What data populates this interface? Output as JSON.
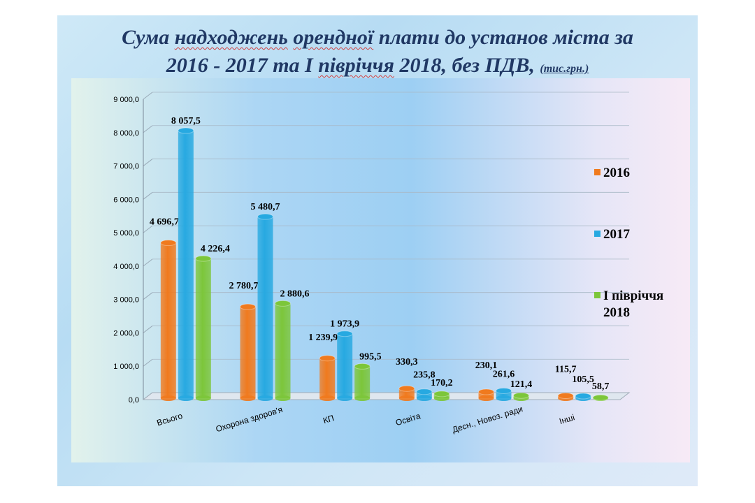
{
  "title": {
    "line1_prefix": "Сума ",
    "line1_squig1": "надходжень",
    "line1_mid": " ",
    "line1_squig2": "орендної",
    "line1_suffix": " плати до установ міста  за",
    "line2_prefix": "2016  - 2017 та І ",
    "line2_squig": "півріччя",
    "line2_suffix": " 2018, без ПДВ, ",
    "unit": "(тис.грн.)"
  },
  "chart_data": {
    "type": "bar",
    "categories": [
      "Всього",
      "Охорона здоров'я",
      "КП",
      "Освіта",
      "Десн., Новоз. ради",
      "Інші"
    ],
    "series": [
      {
        "name": "2016",
        "color": "#f07a1e",
        "values": [
          4696.7,
          2780.7,
          1239.9,
          330.3,
          230.1,
          115.7
        ],
        "labels": [
          "4 696,7",
          "2 780,7",
          "1 239,9",
          "330,3",
          "230,1",
          "115,7"
        ]
      },
      {
        "name": "2017",
        "color": "#27a9e1",
        "values": [
          8057.5,
          5480.7,
          1973.9,
          235.8,
          261.6,
          105.5
        ],
        "labels": [
          "8 057,5",
          "5 480,7",
          "1 973,9",
          "235,8",
          "261,6",
          "105,5"
        ]
      },
      {
        "name": "І півріччя 2018",
        "color": "#7cc63a",
        "values": [
          4226.4,
          2880.6,
          995.5,
          170.2,
          121.4,
          58.7
        ],
        "labels": [
          "4 226,4",
          "2 880,6",
          "995,5",
          "170,2",
          "121,4",
          "58,7"
        ]
      }
    ],
    "ylim": [
      0,
      9000
    ],
    "yticks": [
      0,
      1000,
      2000,
      3000,
      4000,
      5000,
      6000,
      7000,
      8000,
      9000
    ],
    "ytick_labels": [
      "0,0",
      "1 000,0",
      "2 000,0",
      "3 000,0",
      "4 000,0",
      "5 000,0",
      "6 000,0",
      "7 000,0",
      "8 000,0",
      "9 000,0"
    ],
    "legend": {
      "placement": "right",
      "entries": [
        {
          "line1": "2016",
          "line2": ""
        },
        {
          "line1": "2017",
          "line2": ""
        },
        {
          "line1": "І півріччя",
          "line2": "2018"
        }
      ]
    },
    "grid": true
  }
}
